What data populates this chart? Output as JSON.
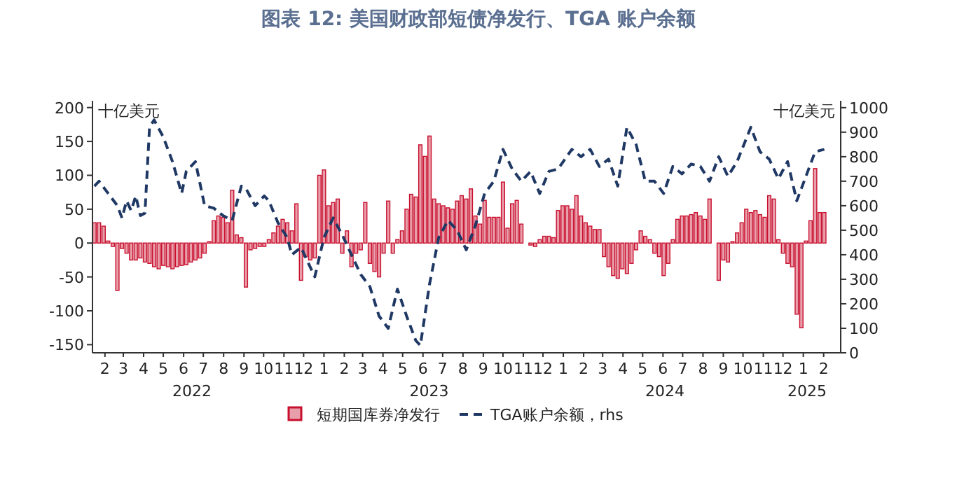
{
  "chart_data": {
    "type": "bar",
    "title": "图表 12: 美国财政部短债净发行、TGA 账户余额",
    "x": [
      "2022-01-27",
      "2022-02-03",
      "2022-02-10",
      "2022-02-17",
      "2022-02-24",
      "2022-03-03",
      "2022-03-10",
      "2022-03-17",
      "2022-03-24",
      "2022-03-31",
      "2022-04-07",
      "2022-04-14",
      "2022-04-21",
      "2022-04-28",
      "2022-05-05",
      "2022-05-12",
      "2022-05-19",
      "2022-05-26",
      "2022-06-02",
      "2022-06-09",
      "2022-06-16",
      "2022-06-23",
      "2022-06-30",
      "2022-07-07",
      "2022-07-14",
      "2022-07-21",
      "2022-07-28",
      "2022-08-04",
      "2022-08-11",
      "2022-08-18",
      "2022-08-25",
      "2022-09-01",
      "2022-09-08",
      "2022-09-15",
      "2022-09-22",
      "2022-09-29",
      "2022-10-06",
      "2022-10-13",
      "2022-10-20",
      "2022-10-27",
      "2022-11-03",
      "2022-11-10",
      "2022-11-17",
      "2022-11-24",
      "2022-12-01",
      "2022-12-08",
      "2022-12-15",
      "2022-12-22",
      "2022-12-29",
      "2023-01-05",
      "2023-01-12",
      "2023-01-19",
      "2023-01-26",
      "2023-02-02",
      "2023-02-09",
      "2023-02-16",
      "2023-02-23",
      "2023-03-02",
      "2023-03-09",
      "2023-03-16",
      "2023-03-23",
      "2023-03-30",
      "2023-04-06",
      "2023-04-13",
      "2023-04-20",
      "2023-04-27",
      "2023-05-04",
      "2023-05-11",
      "2023-05-18",
      "2023-05-25",
      "2023-06-01",
      "2023-06-08",
      "2023-06-15",
      "2023-06-22",
      "2023-06-29",
      "2023-07-06",
      "2023-07-13",
      "2023-07-20",
      "2023-07-27",
      "2023-08-03",
      "2023-08-10",
      "2023-08-17",
      "2023-08-24",
      "2023-08-31",
      "2023-09-07",
      "2023-09-14",
      "2023-09-21",
      "2023-09-28",
      "2023-10-05",
      "2023-10-12",
      "2023-10-19",
      "2023-10-26",
      "2023-11-02",
      "2023-11-09",
      "2023-11-16",
      "2023-11-23",
      "2023-11-30",
      "2023-12-07",
      "2023-12-14",
      "2023-12-21",
      "2023-12-28",
      "2024-01-04",
      "2024-01-11",
      "2024-01-18",
      "2024-01-25",
      "2024-02-01",
      "2024-02-08",
      "2024-02-15",
      "2024-02-22",
      "2024-02-29",
      "2024-03-07",
      "2024-03-14",
      "2024-03-21",
      "2024-03-28",
      "2024-04-04",
      "2024-04-11",
      "2024-04-18",
      "2024-04-25",
      "2024-05-02",
      "2024-05-09",
      "2024-05-16",
      "2024-05-23",
      "2024-05-30",
      "2024-06-06",
      "2024-06-13",
      "2024-06-20",
      "2024-06-27",
      "2024-07-04",
      "2024-07-11",
      "2024-07-18",
      "2024-07-25",
      "2024-08-01",
      "2024-08-08",
      "2024-08-15",
      "2024-08-22",
      "2024-08-29",
      "2024-09-05",
      "2024-09-12",
      "2024-09-19",
      "2024-09-26",
      "2024-10-03",
      "2024-10-10",
      "2024-10-17",
      "2024-10-24",
      "2024-10-31",
      "2024-11-07",
      "2024-11-14",
      "2024-11-21",
      "2024-11-28",
      "2024-12-05",
      "2024-12-12",
      "2024-12-19",
      "2024-12-26",
      "2025-01-02",
      "2025-01-09",
      "2025-01-16",
      "2025-01-23",
      "2025-01-30",
      "2025-02-06",
      "2025-02-13"
    ],
    "series": [
      {
        "name": "短期国库券净发行",
        "color": "#c8102e",
        "values": [
          30,
          30,
          25,
          3,
          -5,
          -70,
          -8,
          -15,
          -25,
          -25,
          -22,
          -28,
          -30,
          -35,
          -38,
          -33,
          -35,
          -38,
          -35,
          -33,
          -32,
          -28,
          -25,
          -22,
          -15,
          2,
          33,
          40,
          38,
          30,
          78,
          12,
          8,
          -65,
          -10,
          -8,
          -5,
          -5,
          5,
          15,
          25,
          35,
          30,
          18,
          58,
          -55,
          -20,
          -25,
          -22,
          100,
          108,
          55,
          60,
          65,
          -15,
          18,
          -35,
          -15,
          -10,
          60,
          -30,
          -42,
          -50,
          -15,
          62,
          -15,
          5,
          18,
          50,
          72,
          68,
          145,
          128,
          158,
          65,
          58,
          55,
          52,
          50,
          62,
          70,
          65,
          80,
          40,
          28,
          63,
          38,
          38,
          38,
          90,
          22,
          58,
          63,
          28,
          0,
          -3,
          -5,
          5,
          10,
          10,
          8,
          48,
          55,
          55,
          50,
          70,
          40,
          30,
          25,
          20,
          20,
          -20,
          -35,
          -48,
          -52,
          -38,
          -45,
          -30,
          -10,
          18,
          10,
          5,
          -15,
          -20,
          -48,
          -30,
          5,
          35,
          40,
          40,
          42,
          45,
          40,
          35,
          65,
          0,
          -55,
          -25,
          -28,
          2,
          15,
          30,
          50,
          45,
          48,
          42,
          38,
          70,
          65,
          5,
          -15,
          -30,
          -35,
          -105,
          -125,
          3,
          33,
          110,
          45,
          45
        ]
      },
      {
        "name": "TGA账户余额，rhs",
        "type": "line",
        "axis": "y2",
        "color": "#1f3864",
        "line_style": "dashed",
        "x": [
          "2022-01-27",
          "2022-02-03",
          "2022-02-17",
          "2022-03-03",
          "2022-03-10",
          "2022-03-17",
          "2022-03-24",
          "2022-03-31",
          "2022-04-07",
          "2022-04-14",
          "2022-04-21",
          "2022-04-28",
          "2022-05-12",
          "2022-05-26",
          "2022-06-09",
          "2022-06-16",
          "2022-06-23",
          "2022-06-30",
          "2022-07-14",
          "2022-07-28",
          "2022-08-11",
          "2022-08-25",
          "2022-09-08",
          "2022-09-15",
          "2022-09-29",
          "2022-10-13",
          "2022-10-20",
          "2022-11-03",
          "2022-11-17",
          "2022-11-24",
          "2022-12-08",
          "2022-12-29",
          "2023-01-12",
          "2023-01-26",
          "2023-02-09",
          "2023-02-23",
          "2023-03-09",
          "2023-03-23",
          "2023-04-06",
          "2023-04-20",
          "2023-05-04",
          "2023-05-18",
          "2023-06-01",
          "2023-06-08",
          "2023-06-22",
          "2023-07-06",
          "2023-07-20",
          "2023-08-03",
          "2023-08-17",
          "2023-08-31",
          "2023-09-14",
          "2023-09-28",
          "2023-10-12",
          "2023-10-26",
          "2023-11-09",
          "2023-11-23",
          "2023-12-07",
          "2023-12-21",
          "2024-01-04",
          "2024-01-25",
          "2024-02-08",
          "2024-02-22",
          "2024-03-07",
          "2024-03-21",
          "2024-04-04",
          "2024-04-18",
          "2024-05-02",
          "2024-05-16",
          "2024-05-30",
          "2024-06-13",
          "2024-06-27",
          "2024-07-11",
          "2024-07-25",
          "2024-08-08",
          "2024-08-22",
          "2024-09-05",
          "2024-09-19",
          "2024-10-03",
          "2024-10-24",
          "2024-11-07",
          "2024-11-21",
          "2024-12-05",
          "2024-12-19",
          "2025-01-02",
          "2025-01-16",
          "2025-01-30",
          "2025-02-13"
        ],
        "values": [
          680,
          700,
          650,
          600,
          550,
          620,
          580,
          640,
          560,
          570,
          920,
          950,
          880,
          780,
          650,
          740,
          760,
          780,
          600,
          590,
          560,
          540,
          680,
          670,
          600,
          640,
          620,
          530,
          470,
          400,
          430,
          310,
          470,
          550,
          480,
          400,
          320,
          270,
          150,
          100,
          260,
          150,
          50,
          30,
          280,
          470,
          540,
          500,
          420,
          520,
          650,
          700,
          830,
          750,
          700,
          740,
          650,
          740,
          750,
          830,
          800,
          830,
          760,
          790,
          680,
          920,
          850,
          700,
          700,
          650,
          760,
          730,
          770,
          760,
          700,
          800,
          720,
          780,
          920,
          820,
          790,
          710,
          780,
          620,
          720,
          820,
          830
        ]
      }
    ],
    "xlim": [
      "2022-01-24",
      "2025-03-10"
    ],
    "xticks": [
      {
        "value": "2022-02-12",
        "label": "2"
      },
      {
        "value": "2022-03-12",
        "label": "3"
      },
      {
        "value": "2022-04-12",
        "label": "4"
      },
      {
        "value": "2022-05-12",
        "label": "5"
      },
      {
        "value": "2022-06-12",
        "label": "6"
      },
      {
        "value": "2022-07-12",
        "label": "7"
      },
      {
        "value": "2022-08-12",
        "label": "8"
      },
      {
        "value": "2022-09-12",
        "label": "9"
      },
      {
        "value": "2022-10-12",
        "label": "10"
      },
      {
        "value": "2022-11-12",
        "label": "11"
      },
      {
        "value": "2022-12-12",
        "label": "12"
      },
      {
        "value": "2023-01-12",
        "label": "1"
      },
      {
        "value": "2023-02-12",
        "label": "2"
      },
      {
        "value": "2023-03-12",
        "label": "3"
      },
      {
        "value": "2023-04-12",
        "label": "4"
      },
      {
        "value": "2023-05-12",
        "label": "5"
      },
      {
        "value": "2023-06-12",
        "label": "6"
      },
      {
        "value": "2023-07-12",
        "label": "7"
      },
      {
        "value": "2023-08-12",
        "label": "8"
      },
      {
        "value": "2023-09-12",
        "label": "9"
      },
      {
        "value": "2023-10-12",
        "label": "10"
      },
      {
        "value": "2023-11-12",
        "label": "11"
      },
      {
        "value": "2023-12-12",
        "label": "12"
      },
      {
        "value": "2024-01-12",
        "label": "1"
      },
      {
        "value": "2024-02-12",
        "label": "2"
      },
      {
        "value": "2024-03-12",
        "label": "3"
      },
      {
        "value": "2024-04-12",
        "label": "4"
      },
      {
        "value": "2024-05-12",
        "label": "5"
      },
      {
        "value": "2024-06-12",
        "label": "6"
      },
      {
        "value": "2024-07-12",
        "label": "7"
      },
      {
        "value": "2024-08-12",
        "label": "8"
      },
      {
        "value": "2024-09-12",
        "label": "9"
      },
      {
        "value": "2024-10-12",
        "label": "10"
      },
      {
        "value": "2024-11-12",
        "label": "11"
      },
      {
        "value": "2024-12-12",
        "label": "12"
      },
      {
        "value": "2025-01-12",
        "label": "1"
      },
      {
        "value": "2025-02-12",
        "label": "2"
      }
    ],
    "ylim": [
      -162,
      210
    ],
    "yticks": [
      -150,
      -100,
      -50,
      0,
      50,
      100,
      150,
      200
    ],
    "y2lim": [
      0,
      1028
    ],
    "y2ticks": [
      0,
      100,
      200,
      300,
      400,
      500,
      600,
      700,
      800,
      900,
      1000
    ],
    "annotations": [
      "十亿美元",
      "十亿美元",
      "2022",
      "2023",
      "2024",
      "2025"
    ],
    "legend": "bottom",
    "grid": false
  }
}
